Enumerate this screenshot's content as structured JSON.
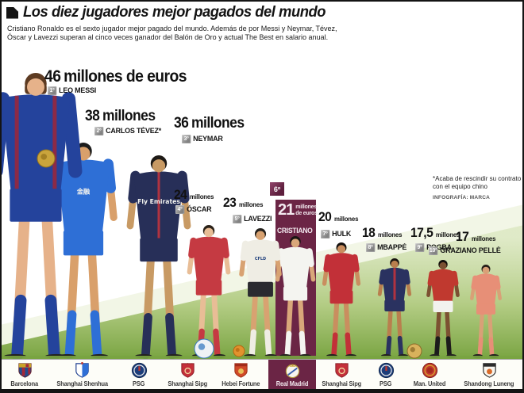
{
  "header": {
    "title": "Los diez jugadores mejor pagados del mundo",
    "subtitle": [
      "Cristiano Ronaldo es el sexto jugador mejor pagado del mundo. Además de por Messi y Neymar, Tévez,",
      "Óscar y Lavezzi superan al cinco veces ganador del Balón de Oro y actual The Best en salario anual."
    ]
  },
  "footnote": {
    "lines": [
      "*Acaba de rescindir su contrato",
      "con el equipo chino"
    ],
    "credit": "INFOGRAFÍA: MARCA"
  },
  "players": [
    {
      "rank_label": "1º",
      "salary": "46",
      "salary_suffix": "millones de euros",
      "name": "LEO MESSI",
      "club": "Barcelona",
      "kit": {
        "shirt": "#24439c",
        "stripe": "#8c2a46",
        "shorts": "#24439c",
        "socks": "#24439c",
        "skin": "#e6b28a",
        "hair": "#5d3b22"
      }
    },
    {
      "rank_label": "2º",
      "salary": "38",
      "salary_suffix": "millones",
      "name": "CARLOS TÉVEZ*",
      "club": "Shanghai Shenhua",
      "shirt_text": "金融",
      "kit": {
        "shirt": "#2e6fd6",
        "shorts": "#2e6fd6",
        "socks": "#2e6fd6",
        "skin": "#d9a06b",
        "hair": "#1c1c1c"
      }
    },
    {
      "rank_label": "3º",
      "salary": "36",
      "salary_suffix": "millones",
      "name": "NEYMAR",
      "club": "PSG",
      "shirt_text": "Fly Emirates",
      "kit": {
        "shirt": "#272f58",
        "stripe": "#b03340",
        "shorts": "#272f58",
        "socks": "#272f58",
        "skin": "#c89a64",
        "hair": "#1e1a16"
      }
    },
    {
      "rank_label": "4º",
      "salary": "24",
      "salary_suffix": "millones",
      "name": "ÓSCAR",
      "club": "Shanghai Sipg",
      "kit": {
        "shirt": "#c53a42",
        "shorts": "#c53a42",
        "socks": "#c53a42",
        "skin": "#e8bd96",
        "hair": "#2a2118"
      }
    },
    {
      "rank_label": "5º",
      "salary": "23",
      "salary_suffix": "millones",
      "name": "LAVEZZI",
      "club": "Hebei Fortune",
      "shirt_text": "CFLD",
      "kit": {
        "shirt": "#efede4",
        "shorts": "#2a2a30",
        "socks": "#efede4",
        "skin": "#d8a271",
        "hair": "#23201c"
      }
    },
    {
      "rank_label": "6º",
      "salary": "21",
      "salary_suffix": "millones de euros",
      "name": "CRISTIANO",
      "club": "Real Madrid",
      "highlighted": true,
      "kit": {
        "shirt": "#f4f4f0",
        "shorts": "#f4f4f0",
        "socks": "#f4f4f0",
        "skin": "#d9a77a",
        "hair": "#191512"
      }
    },
    {
      "rank_label": "7º",
      "salary": "20",
      "salary_suffix": "millones",
      "name": "HULK",
      "club": "Shanghai Sipg",
      "kit": {
        "shirt": "#c23038",
        "shorts": "#c23038",
        "socks": "#c23038",
        "skin": "#c98e5f",
        "hair": "#14100e"
      }
    },
    {
      "rank_label": "8º",
      "salary": "18",
      "salary_suffix": "millones",
      "name": "MBAPPÉ",
      "club": "PSG",
      "kit": {
        "shirt": "#2a3260",
        "stripe": "#b03340",
        "shorts": "#2a3260",
        "socks": "#2a3260",
        "skin": "#b97f4e",
        "hair": "#181310"
      }
    },
    {
      "rank_label": "9º",
      "salary": "17,5",
      "salary_suffix": "millones",
      "name": "POGBA",
      "club": "Man. United",
      "kit": {
        "shirt": "#c0392f",
        "shorts": "#f2f2ee",
        "socks": "#1c1c1c",
        "skin": "#7c5132",
        "hair": "#120e0a"
      }
    },
    {
      "rank_label": "10º",
      "salary": "17",
      "salary_suffix": "millones",
      "name": "GRAZIANO PELLÈ",
      "club": "Shandong Luneng",
      "kit": {
        "shirt": "#e78f77",
        "shorts": "#e78f77",
        "socks": "#e78f77",
        "skin": "#d9a077",
        "hair": "#241d18"
      }
    }
  ],
  "clubs": [
    {
      "name": "Barcelona",
      "style": "barcelona"
    },
    {
      "name": "Shanghai Shenhua",
      "style": "shenhua"
    },
    {
      "name": "PSG",
      "style": "psg"
    },
    {
      "name": "Shanghai Sipg",
      "style": "sipg"
    },
    {
      "name": "Hebei Fortune",
      "style": "hebei"
    },
    {
      "name": "Real Madrid",
      "style": "realmadrid",
      "highlighted": true
    },
    {
      "name": "Shanghai Sipg",
      "style": "sipg"
    },
    {
      "name": "PSG",
      "style": "psg"
    },
    {
      "name": "Man. United",
      "style": "manutd"
    },
    {
      "name": "Shandong Luneng",
      "style": "shandong"
    }
  ],
  "colors": {
    "highlight": "#6b2545",
    "badge_gray": "#8e8e8e",
    "grass_dark": "#79a441",
    "grass_light": "#dce8c2",
    "bar_bg": "#fdfdf8"
  },
  "chart_data": {
    "type": "bar",
    "title": "Los diez jugadores mejor pagados del mundo",
    "unit": "millones de euros",
    "categories": [
      "Leo Messi",
      "Carlos Tévez",
      "Neymar",
      "Óscar",
      "Lavezzi",
      "Cristiano",
      "Hulk",
      "Mbappé",
      "Pogba",
      "Graziano Pellè"
    ],
    "values": [
      46,
      38,
      36,
      24,
      23,
      21,
      20,
      18,
      17.5,
      17
    ],
    "ranks": [
      "1º",
      "2º",
      "3º",
      "4º",
      "5º",
      "6º",
      "7º",
      "8º",
      "9º",
      "10º"
    ],
    "clubs": [
      "Barcelona",
      "Shanghai Shenhua",
      "PSG",
      "Shanghai Sipg",
      "Hebei Fortune",
      "Real Madrid",
      "Shanghai Sipg",
      "PSG",
      "Man. United",
      "Shandong Luneng"
    ],
    "annotations": [
      "*Acaba de rescindir su contrato con el equipo chino",
      "INFOGRAFÍA: MARCA"
    ]
  }
}
